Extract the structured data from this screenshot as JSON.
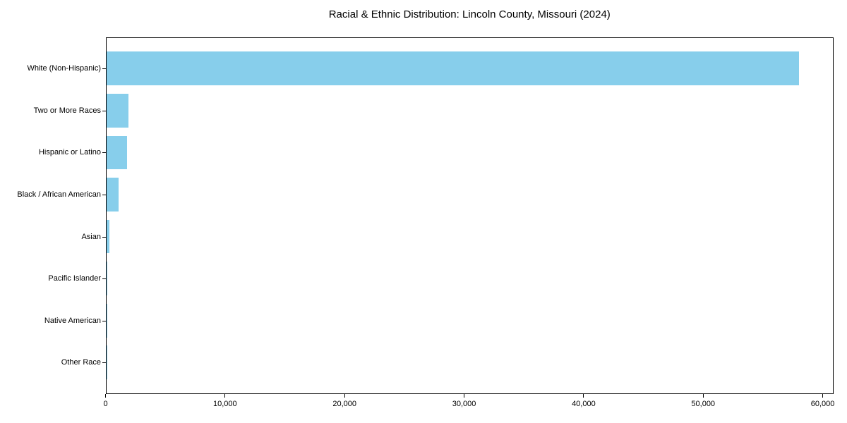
{
  "chart_data": {
    "type": "bar",
    "orientation": "horizontal",
    "title": "Racial & Ethnic Distribution: Lincoln County, Missouri (2024)",
    "categories": [
      "White (Non-Hispanic)",
      "Two or More Races",
      "Hispanic or Latino",
      "Black / African American",
      "Asian",
      "Pacific Islander",
      "Native American",
      "Other Race"
    ],
    "values": [
      57950,
      1850,
      1770,
      1020,
      290,
      55,
      15,
      5
    ],
    "xlabel": "",
    "ylabel": "",
    "xlim": [
      0,
      60910
    ],
    "xticks": [
      0,
      10000,
      20000,
      30000,
      40000,
      50000,
      60000
    ],
    "xtick_labels": [
      "0",
      "10,000",
      "20,000",
      "30,000",
      "40,000",
      "50,000",
      "60,000"
    ],
    "bar_color": "#87ceeb",
    "axis_color": "#000000",
    "text_color": "#000000",
    "grid": false,
    "legend": null
  }
}
